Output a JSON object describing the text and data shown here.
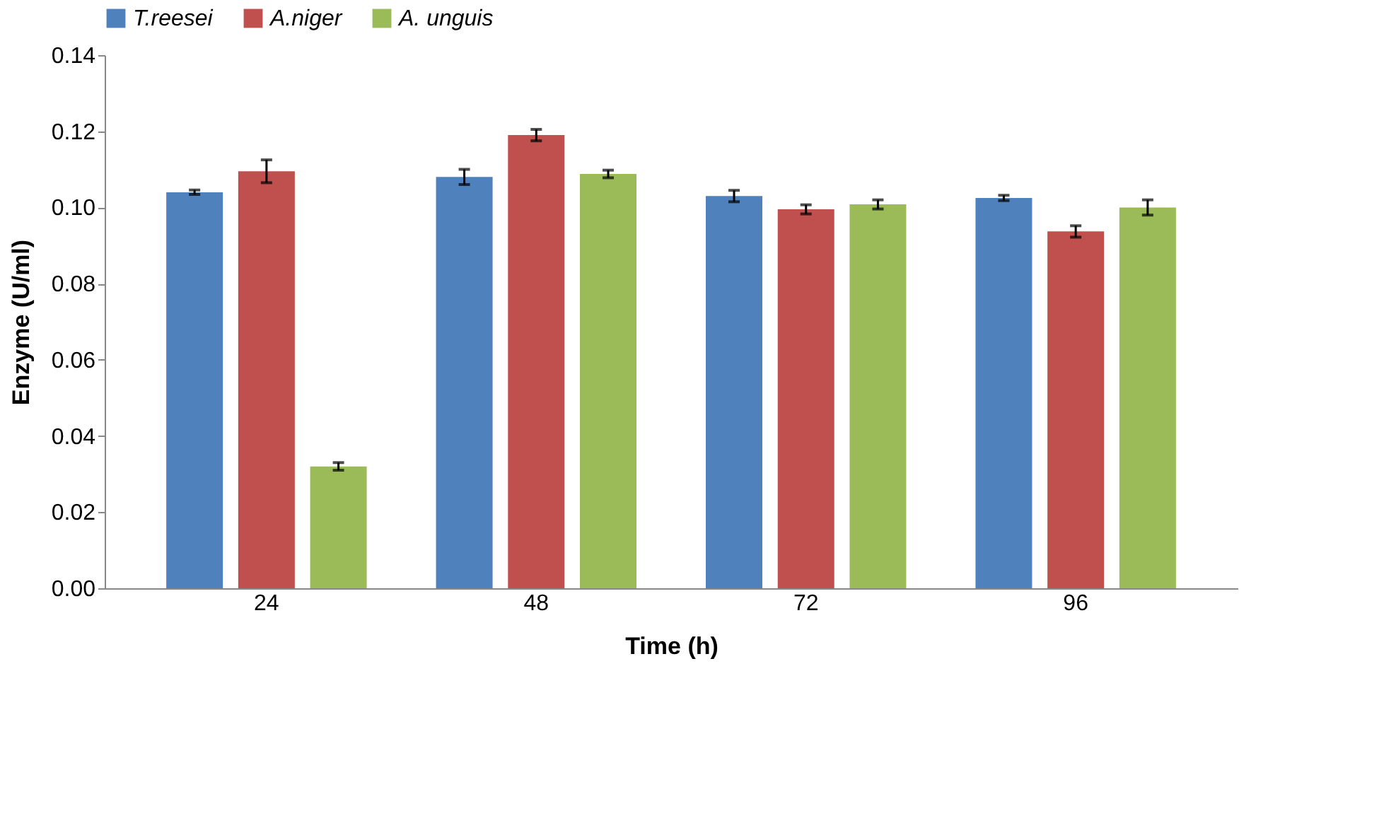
{
  "chart_data": {
    "type": "bar",
    "xlabel": "Time (h)",
    "ylabel": "Enzyme (U/ml)",
    "categories": [
      "24",
      "48",
      "72",
      "96"
    ],
    "series": [
      {
        "name": "T.reesei",
        "color": "#4f81bd",
        "values": [
          0.104,
          0.108,
          0.103,
          0.1025
        ],
        "errors": [
          0.0006,
          0.002,
          0.0015,
          0.0007
        ]
      },
      {
        "name": "A.niger",
        "color": "#c0504d",
        "values": [
          0.1095,
          0.119,
          0.0995,
          0.0937
        ],
        "errors": [
          0.003,
          0.0015,
          0.0012,
          0.0015
        ]
      },
      {
        "name": "A. unguis",
        "color": "#9bbb59",
        "values": [
          0.032,
          0.1088,
          0.1008,
          0.1
        ],
        "errors": [
          0.001,
          0.001,
          0.0012,
          0.002
        ]
      }
    ],
    "ylim": [
      0,
      0.14
    ],
    "yticks": [
      {
        "value": 0,
        "label": "0.00"
      },
      {
        "value": 0.02,
        "label": "0.02"
      },
      {
        "value": 0.04,
        "label": "0.04"
      },
      {
        "value": 0.06,
        "label": "0.06"
      },
      {
        "value": 0.08,
        "label": "0.08"
      },
      {
        "value": 0.1,
        "label": "0.10"
      },
      {
        "value": 0.12,
        "label": "0.12"
      },
      {
        "value": 0.14,
        "label": "0.14"
      }
    ],
    "legend": "top",
    "grid": false
  }
}
